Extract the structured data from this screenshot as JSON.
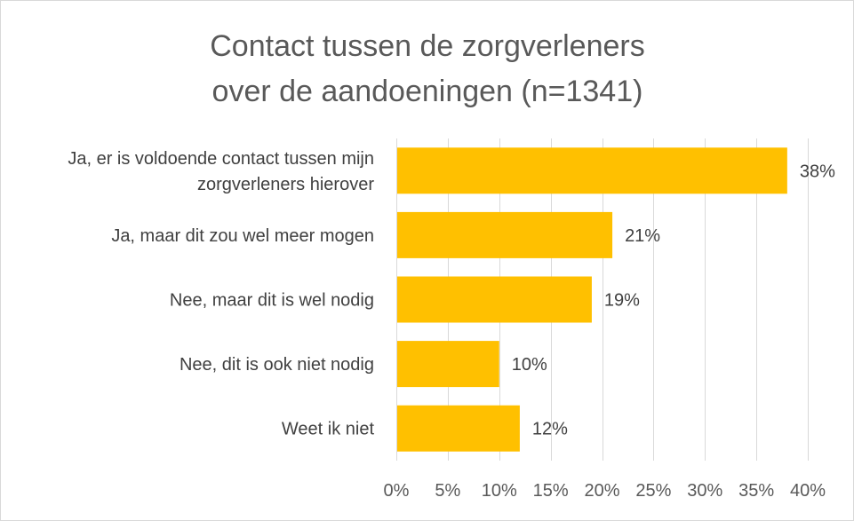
{
  "chart_data": {
    "type": "bar",
    "orientation": "horizontal",
    "title": [
      "Contact tussen de zorgverleners",
      "over de aandoeningen (n=1341)"
    ],
    "categories": [
      [
        "Ja, er is voldoende contact tussen mijn",
        "zorgverleners hierover"
      ],
      [
        "Ja, maar dit zou wel meer mogen"
      ],
      [
        "Nee, maar dit is wel nodig"
      ],
      [
        "Nee, dit is ook niet nodig"
      ],
      [
        "Weet ik niet"
      ]
    ],
    "values": [
      38,
      21,
      19,
      10,
      12
    ],
    "data_labels": [
      "38%",
      "21%",
      "19%",
      "10%",
      "12%"
    ],
    "xlim": [
      0,
      40
    ],
    "xticks": [
      0,
      5,
      10,
      15,
      20,
      25,
      30,
      35,
      40
    ],
    "xtick_labels": [
      "0%",
      "5%",
      "10%",
      "15%",
      "20%",
      "25%",
      "30%",
      "35%",
      "40%"
    ],
    "grid": true,
    "legend": "none",
    "bar_color": "#FFC000"
  }
}
